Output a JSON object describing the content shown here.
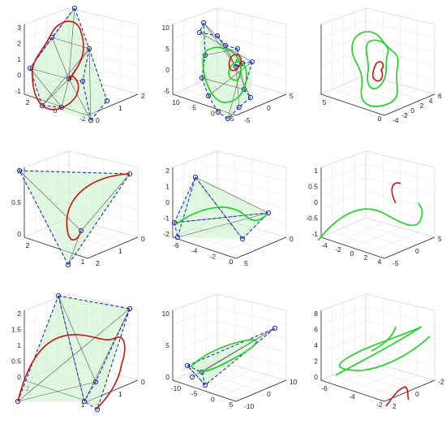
{
  "chart_data": [
    {
      "type": "line",
      "panel": "r1c1",
      "yticks": [
        "3",
        "2",
        "1",
        "0",
        "-1"
      ],
      "xticks_left": [
        "2",
        "0",
        "-2"
      ],
      "xticks_right": [
        "2",
        "1",
        "0"
      ],
      "series": [
        {
          "color": "#d11111"
        }
      ],
      "grid": true
    },
    {
      "type": "line",
      "panel": "r1c2",
      "yticks": [
        "10",
        "5",
        "0",
        "-5"
      ],
      "xticks_left": [
        "10",
        "5",
        "0",
        "-5"
      ],
      "xticks_right": [
        "5",
        "0",
        "-5"
      ],
      "series": [
        {
          "color": "#19d21e"
        },
        {
          "color": "#d11111"
        }
      ],
      "grid": true
    },
    {
      "type": "line",
      "panel": "r1c3",
      "yticks": [],
      "xticks_left": [
        "5",
        "0"
      ],
      "xticks_right": [
        "6",
        "4",
        "2",
        "0",
        "-2",
        "-4"
      ],
      "series": [
        {
          "color": "#19d21e"
        },
        {
          "color": "#d11111"
        }
      ],
      "grid": true
    },
    {
      "type": "line",
      "panel": "r2c1",
      "yticks": [
        "1",
        "0.5",
        "0"
      ],
      "xticks_left": [
        "2",
        "1"
      ],
      "xticks_right": [
        "0",
        "1",
        "2"
      ],
      "series": [
        {
          "color": "#d11111"
        }
      ],
      "grid": true
    },
    {
      "type": "line",
      "panel": "r2c2",
      "yticks": [
        "2",
        "1",
        "0",
        "-1",
        "-2"
      ],
      "xticks_left": [
        "-6",
        "-4",
        "-2",
        "0"
      ],
      "xticks_right": [
        "0",
        "5"
      ],
      "series": [
        {
          "color": "#19d21e"
        }
      ],
      "grid": true
    },
    {
      "type": "line",
      "panel": "r2c3",
      "yticks": [
        "1",
        "0.5",
        "0",
        "-0.5",
        "-1"
      ],
      "xticks_left": [
        "-4",
        "-2",
        "0",
        "2",
        "4"
      ],
      "xticks_right": [
        "5",
        "0",
        "-5"
      ],
      "series": [
        {
          "color": "#19d21e"
        },
        {
          "color": "#d11111"
        }
      ],
      "grid": true
    },
    {
      "type": "line",
      "panel": "r3c1",
      "yticks": [
        "2",
        "1.5",
        "1",
        "0.5",
        "0"
      ],
      "xticks_left": [
        "2",
        "1"
      ],
      "xticks_right": [
        "0",
        "1",
        "2"
      ],
      "series": [
        {
          "color": "#d11111"
        }
      ],
      "grid": true
    },
    {
      "type": "line",
      "panel": "r3c2",
      "yticks": [
        "10",
        "5",
        "0"
      ],
      "xticks_left": [
        "-10",
        "-5",
        "0",
        "5"
      ],
      "xticks_right": [
        "10",
        "0",
        "-10"
      ],
      "series": [
        {
          "color": "#19d21e"
        }
      ],
      "grid": true
    },
    {
      "type": "line",
      "panel": "r3c3",
      "yticks": [
        "8",
        "6",
        "4",
        "2",
        "0"
      ],
      "xticks_left": [
        "-6",
        "-4",
        "-2"
      ],
      "xticks_right": [
        "-2",
        "0",
        "2"
      ],
      "series": [
        {
          "color": "#19d21e"
        },
        {
          "color": "#d11111"
        }
      ],
      "grid": true
    }
  ]
}
